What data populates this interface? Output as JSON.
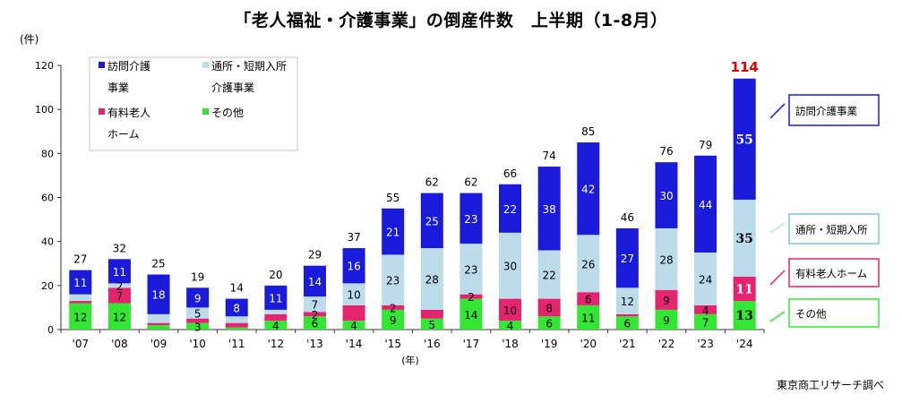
{
  "chart_data": {
    "type": "bar",
    "stacked": true,
    "title": "「老人福祉・介護事業」の倒産件数　上半期（1-8月）",
    "ylabel": "(件)",
    "xlabel": "(年)",
    "ylim": [
      0,
      120
    ],
    "yticks": [
      "0",
      "20",
      "40",
      "60",
      "80",
      "100",
      "120"
    ],
    "grid": false,
    "legend": "top-left",
    "categories": [
      "'07",
      "'08",
      "'09",
      "'10",
      "'11",
      "'12",
      "'13",
      "'14",
      "'15",
      "'16",
      "'17",
      "'18",
      "'19",
      "'20",
      "'21",
      "'22",
      "'23",
      "'24"
    ],
    "totals": [
      27,
      32,
      25,
      19,
      14,
      20,
      29,
      37,
      55,
      62,
      62,
      66,
      74,
      85,
      46,
      76,
      79,
      114
    ],
    "series": [
      {
        "name": "その他",
        "right_label": "その他",
        "color": "#33e633",
        "values": [
          12,
          12,
          2,
          3,
          1,
          4,
          6,
          4,
          9,
          5,
          14,
          4,
          6,
          11,
          6,
          9,
          7,
          13
        ],
        "labels": [
          "12",
          "12",
          "",
          "3",
          "",
          "4",
          "6",
          "4",
          "9",
          "5",
          "14",
          "4",
          "6",
          "11",
          "6",
          "9",
          "7",
          "13"
        ]
      },
      {
        "name": "有料老人ホーム",
        "right_label": "有料老人ホーム",
        "color": "#e4246e",
        "values": [
          1,
          7,
          1,
          2,
          2,
          3,
          2,
          7,
          2,
          4,
          2,
          10,
          8,
          6,
          1,
          9,
          4,
          11
        ],
        "labels": [
          "",
          "7",
          "",
          "",
          "",
          "",
          "2",
          "",
          "2",
          "",
          "2",
          "10",
          "8",
          "6",
          "",
          "9",
          "4",
          "11"
        ]
      },
      {
        "name": "通所・短期入所介護事業",
        "right_label": "通所・短期入所",
        "color": "#bcdcec",
        "values": [
          3,
          2,
          4,
          5,
          3,
          2,
          7,
          10,
          23,
          28,
          23,
          30,
          22,
          26,
          12,
          28,
          24,
          35
        ],
        "labels": [
          "",
          "2",
          "",
          "5",
          "",
          "",
          "7",
          "10",
          "23",
          "28",
          "23",
          "30",
          "22",
          "26",
          "12",
          "28",
          "24",
          "35"
        ]
      },
      {
        "name": "訪問介護事業",
        "right_label": "訪問介護事業",
        "color": "#1a1adb",
        "values": [
          11,
          11,
          18,
          9,
          8,
          11,
          14,
          16,
          21,
          25,
          23,
          22,
          38,
          42,
          27,
          30,
          44,
          55
        ],
        "labels": [
          "11",
          "11",
          "18",
          "9",
          "8",
          "11",
          "14",
          "16",
          "21",
          "25",
          "23",
          "22",
          "38",
          "42",
          "27",
          "30",
          "44",
          "55"
        ]
      }
    ],
    "legend_entries": [
      {
        "line1": "訪問介護",
        "line2": "事業",
        "color": "#1a1adb"
      },
      {
        "line1": "通所・短期入所",
        "line2": "介護事業",
        "color": "#bcdcec"
      },
      {
        "line1": "有料老人",
        "line2": "ホーム",
        "color": "#e4246e"
      },
      {
        "line1": "その他",
        "line2": "",
        "color": "#33e633"
      }
    ],
    "highlight_total_color": "#e00000",
    "source": "東京商工リサーチ調べ"
  }
}
